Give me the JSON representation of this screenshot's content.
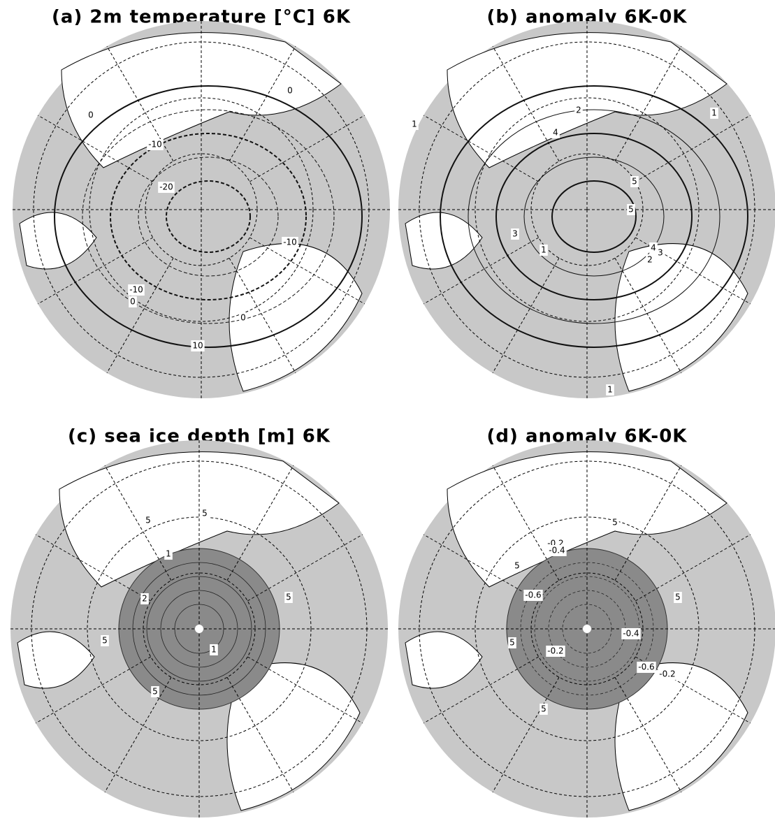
{
  "panels": [
    {
      "title": "(a) 2m temperature  [°C] 6K",
      "labels": [
        "0",
        "0",
        "-10",
        "-20",
        "-10",
        "-10",
        "0",
        "0",
        "10"
      ]
    },
    {
      "title": "(b) anomaly 6K-0K",
      "labels": [
        "1",
        "1",
        "2",
        "4",
        "5",
        "5",
        "3",
        "1",
        "4",
        "3",
        "2",
        "1"
      ]
    },
    {
      "title": "(c) sea ice depth [m] 6K",
      "labels": [
        "5",
        "5",
        "1",
        "2",
        "5",
        "5",
        "1",
        "5"
      ]
    },
    {
      "title": "(d) anomaly 6K-0K",
      "labels": [
        "5",
        "-0.2",
        "-0.4",
        "5",
        "-0.6",
        "5",
        "-0.4",
        "5",
        "-0.2",
        "-0.6",
        "-0.2",
        "5"
      ]
    }
  ]
}
